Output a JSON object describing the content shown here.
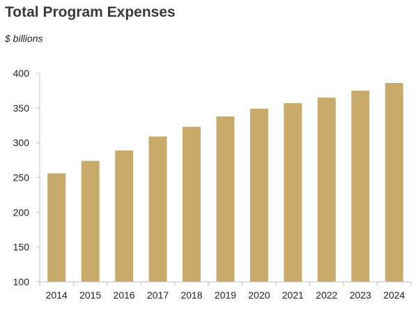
{
  "chart_data": {
    "type": "bar",
    "title": "Total Program Expenses",
    "subtitle": "$ billions",
    "xlabel": "",
    "ylabel": "",
    "categories": [
      "2014",
      "2015",
      "2016",
      "2017",
      "2018",
      "2019",
      "2020",
      "2021",
      "2022",
      "2023",
      "2024"
    ],
    "values": [
      256,
      274,
      289,
      309,
      323,
      338,
      349,
      357,
      365,
      375,
      386
    ],
    "ylim": [
      100,
      400
    ],
    "yticks": [
      100,
      150,
      200,
      250,
      300,
      350,
      400
    ],
    "grid": false,
    "bar_color": "#c8ab6b",
    "axis_color": "#c0c0c0"
  }
}
